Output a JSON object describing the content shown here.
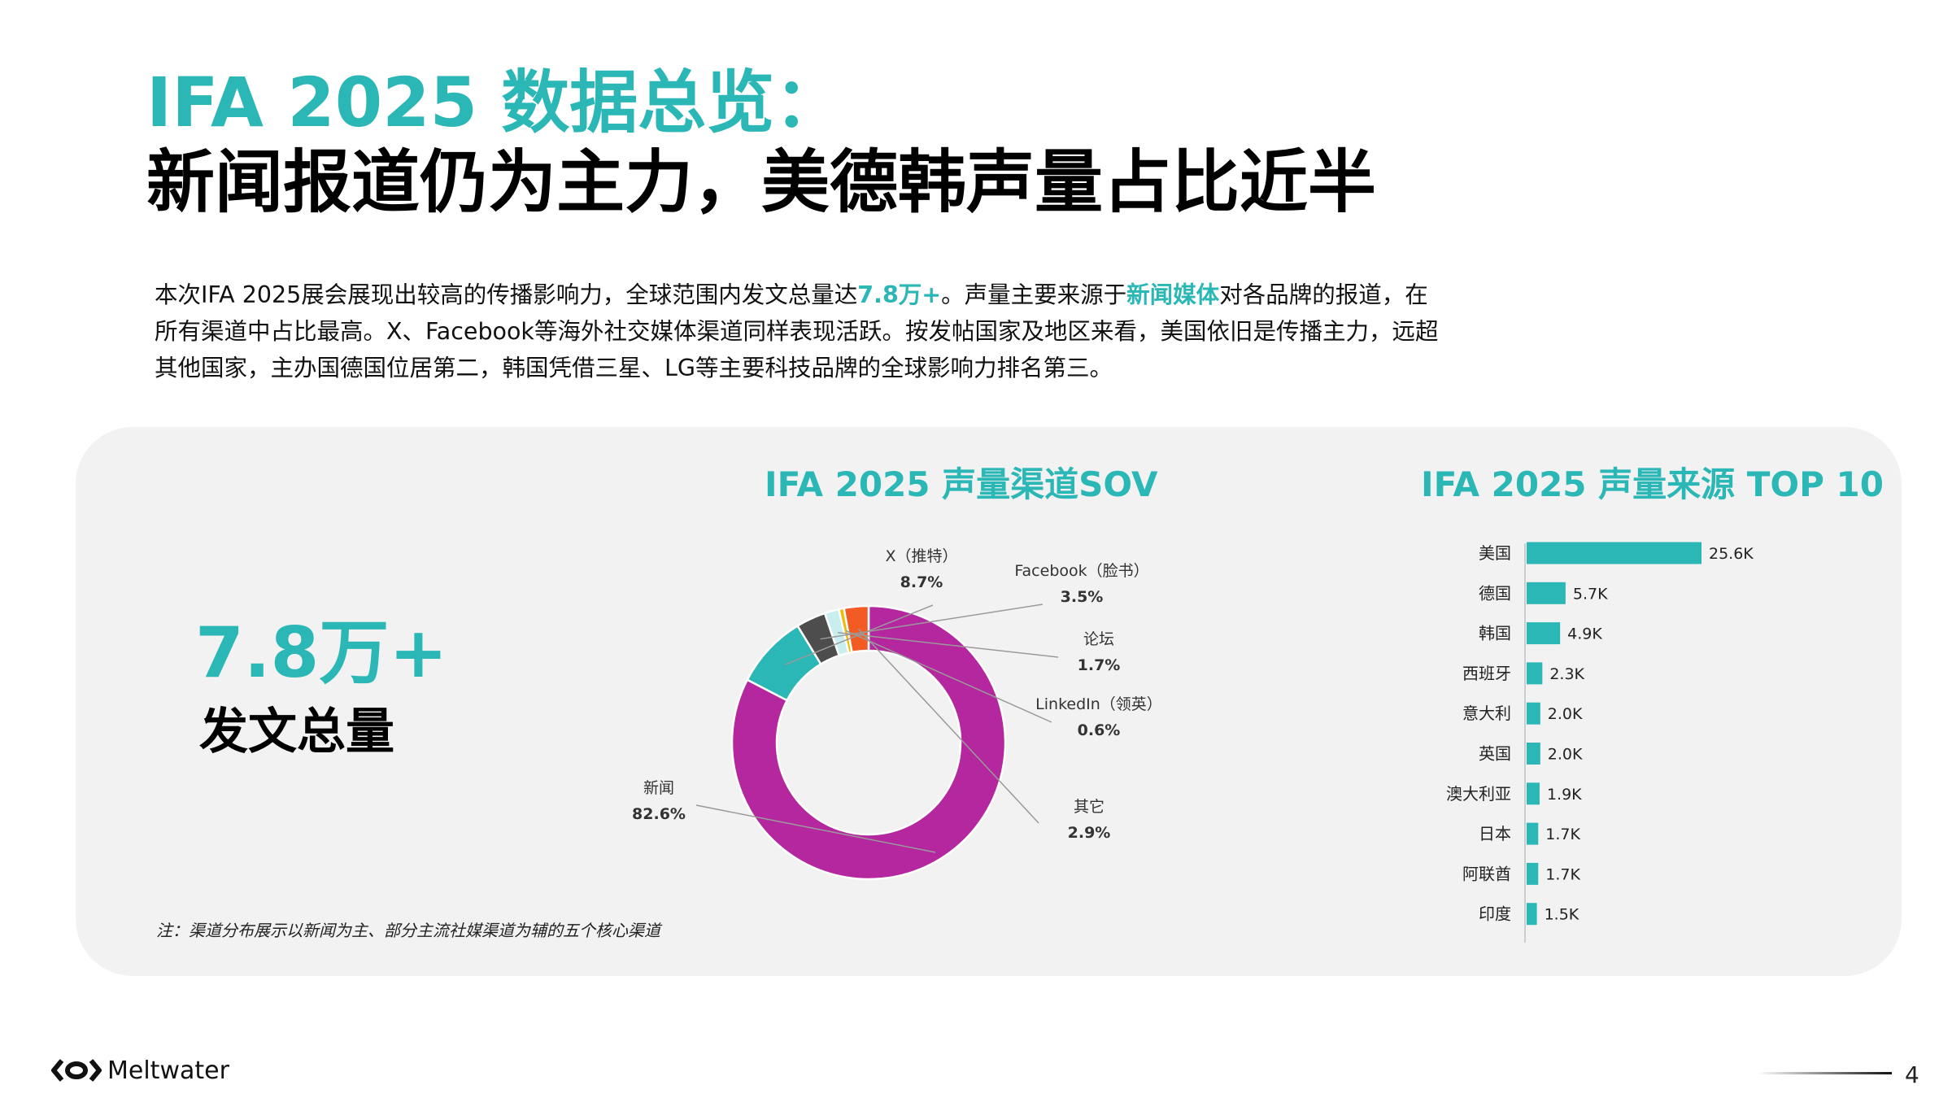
{
  "header": {
    "title_line1": "IFA 2025 数据总览：",
    "title_line2": "新闻报道仍为主力，美德韩声量占比近半"
  },
  "intro": {
    "part1": "本次IFA 2025展会展现出较高的传播影响力，全球范围内发文总量达",
    "hl1": "7.8万+",
    "part2": "。声量主要来源于",
    "hl2": "新闻媒体",
    "part3": "对各品牌的报道，在所有渠道中占比最高。X、Facebook等海外社交媒体渠道同样表现活跃。按发帖国家及地区来看，美国依旧是传播主力，远超其他国家，主办国德国位居第二，韩国凭借三星、LG等主要科技品牌的全球影响力排名第三。"
  },
  "kpi": {
    "value": "7.8万+",
    "label": "发文总量"
  },
  "note": "注：渠道分布展示以新闻为主、部分主流社媒渠道为辅的五个核心渠道",
  "footer": {
    "brand": "Meltwater",
    "page": "4"
  },
  "chart_data": [
    {
      "type": "pie",
      "title": "IFA 2025 声量渠道SOV",
      "series": [
        {
          "name": "新闻",
          "value": 82.6,
          "label": "82.6%",
          "color": "#b5279f"
        },
        {
          "name": "X（推特）",
          "value": 8.7,
          "label": "8.7%",
          "color": "#2ab7b5"
        },
        {
          "name": "Facebook（脸书）",
          "value": 3.5,
          "label": "3.5%",
          "color": "#4d4d4d"
        },
        {
          "name": "论坛",
          "value": 1.7,
          "label": "1.7%",
          "color": "#c9eef0"
        },
        {
          "name": "LinkedIn（领英）",
          "value": 0.6,
          "label": "0.6%",
          "color": "#f5b800"
        },
        {
          "name": "其它",
          "value": 2.9,
          "label": "2.9%",
          "color": "#f25c24"
        }
      ]
    },
    {
      "type": "bar",
      "orientation": "horizontal",
      "title": "IFA 2025 声量来源 TOP 10",
      "categories": [
        "美国",
        "德国",
        "韩国",
        "西班牙",
        "意大利",
        "英国",
        "澳大利亚",
        "日本",
        "阿联酋",
        "印度"
      ],
      "values": [
        25.6,
        5.7,
        4.9,
        2.3,
        2.0,
        2.0,
        1.9,
        1.7,
        1.7,
        1.5
      ],
      "value_labels": [
        "25.6K",
        "5.7K",
        "4.9K",
        "2.3K",
        "2.0K",
        "2.0K",
        "1.9K",
        "1.7K",
        "1.7K",
        "1.5K"
      ],
      "color": "#2ab7b5"
    }
  ]
}
